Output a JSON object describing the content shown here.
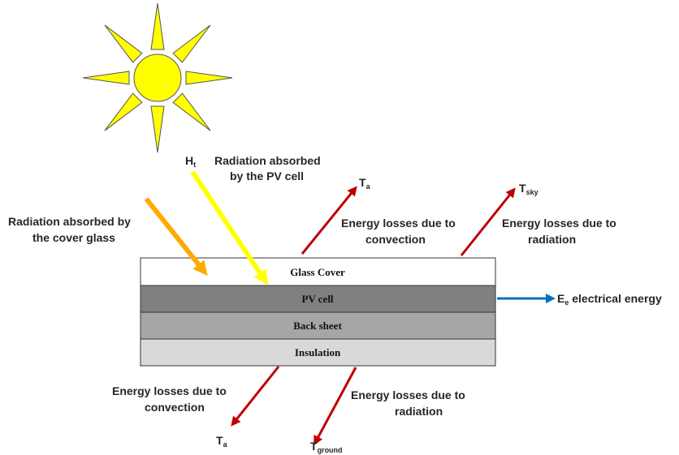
{
  "ht": {
    "main": "H",
    "sub": "t"
  },
  "pv_absorbed": [
    "Radiation absorbed",
    "by the PV cell"
  ],
  "glass_absorbed": [
    "Radiation absorbed by",
    "the cover glass"
  ],
  "top_convection": {
    "lines": [
      "Energy losses due to",
      "convection"
    ],
    "temp": {
      "main": "T",
      "sub": "a"
    }
  },
  "top_radiation": {
    "lines": [
      "Energy losses due to",
      "radiation"
    ],
    "temp": {
      "main": "T",
      "sub": "sky"
    }
  },
  "layers": [
    "Glass Cover",
    "PV cell",
    "Back sheet",
    "Insulation"
  ],
  "output": {
    "main": "E",
    "sub": "e",
    "rest": " electrical energy"
  },
  "bottom_convection": {
    "lines": [
      "Energy losses due to",
      "convection"
    ],
    "temp": {
      "main": "T",
      "sub": "a"
    }
  },
  "bottom_radiation": {
    "lines": [
      "Energy losses due to",
      "radiation"
    ],
    "temp": {
      "main": "T",
      "sub": "ground"
    }
  }
}
